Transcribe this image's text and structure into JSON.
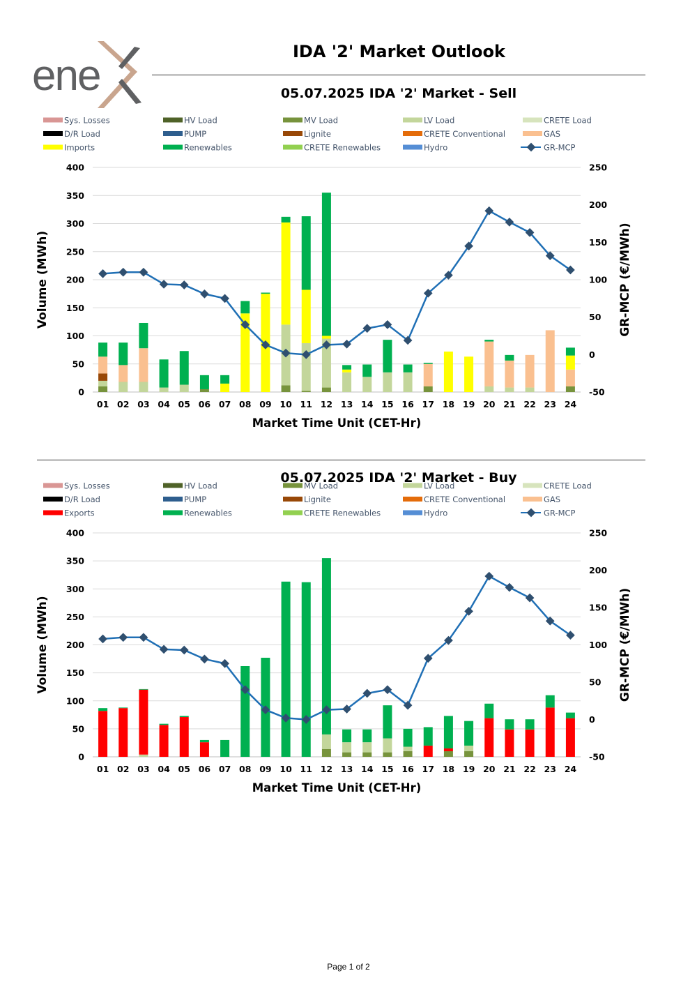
{
  "header": {
    "logo_text": "ene",
    "main_title": "IDA '2' Market Outlook",
    "page_label": "Page 1 of 2"
  },
  "colors": {
    "Sys. Losses": "#d99694",
    "HV Load": "#4f6228",
    "MV Load": "#77933c",
    "LV Load": "#c3d69b",
    "CRETE Load": "#d7e4bd",
    "D/R Load": "#000000",
    "PUMP": "#2e5e8e",
    "Lignite": "#984807",
    "CRETE Conventional": "#e46c0a",
    "GAS": "#fac090",
    "Imports": "#ffff00",
    "Exports": "#ff0000",
    "Renewables": "#00b050",
    "CRETE Renewables": "#92d050",
    "Hydro": "#558ed5",
    "GR-MCP": "#1f6fb5",
    "mcp_marker": "#2f4f6f"
  },
  "chart_data": [
    {
      "type": "bar",
      "title": "05.07.2025  IDA '2' Market - Sell",
      "xlabel": "Market Time Unit (CET-Hr)",
      "ylabel": "Volume (MWh)",
      "y2label": "GR-MCP (€/MWh)",
      "ylim": [
        0,
        400
      ],
      "yticks": [
        0,
        50,
        100,
        150,
        200,
        250,
        300,
        350,
        400
      ],
      "y2lim": [
        -50,
        250
      ],
      "y2ticks": [
        -50,
        0,
        50,
        100,
        150,
        200,
        250
      ],
      "categories": [
        "01",
        "02",
        "03",
        "04",
        "05",
        "06",
        "07",
        "08",
        "09",
        "10",
        "11",
        "12",
        "13",
        "14",
        "15",
        "16",
        "17",
        "18",
        "19",
        "20",
        "21",
        "22",
        "23",
        "24"
      ],
      "legend": [
        "Sys. Losses",
        "HV Load",
        "MV Load",
        "LV Load",
        "CRETE Load",
        "D/R Load",
        "PUMP",
        "Lignite",
        "CRETE Conventional",
        "GAS",
        "Imports",
        "Renewables",
        "CRETE Renewables",
        "Hydro",
        "GR-MCP"
      ],
      "series": [
        {
          "name": "MV Load",
          "values": [
            10,
            0,
            0,
            0,
            0,
            5,
            0,
            0,
            0,
            12,
            2,
            8,
            0,
            0,
            0,
            0,
            10,
            0,
            0,
            0,
            0,
            0,
            0,
            10
          ]
        },
        {
          "name": "LV Load",
          "values": [
            10,
            18,
            18,
            8,
            13,
            0,
            0,
            0,
            0,
            108,
            85,
            87,
            35,
            27,
            35,
            35,
            0,
            0,
            0,
            10,
            8,
            8,
            0,
            0
          ]
        },
        {
          "name": "Lignite",
          "values": [
            13,
            0,
            0,
            0,
            0,
            0,
            0,
            0,
            0,
            0,
            0,
            0,
            0,
            0,
            0,
            0,
            0,
            0,
            0,
            0,
            0,
            0,
            0,
            0
          ]
        },
        {
          "name": "GAS",
          "values": [
            30,
            30,
            60,
            0,
            0,
            0,
            0,
            0,
            0,
            0,
            0,
            0,
            0,
            0,
            0,
            0,
            40,
            0,
            0,
            80,
            48,
            58,
            110,
            30
          ]
        },
        {
          "name": "Imports",
          "values": [
            0,
            0,
            0,
            0,
            0,
            0,
            15,
            140,
            175,
            182,
            95,
            5,
            5,
            0,
            0,
            0,
            0,
            72,
            63,
            0,
            0,
            0,
            0,
            25
          ]
        },
        {
          "name": "Renewables",
          "values": [
            25,
            40,
            45,
            50,
            60,
            25,
            15,
            22,
            2,
            10,
            131,
            255,
            8,
            22,
            58,
            14,
            2,
            0,
            0,
            3,
            10,
            0,
            0,
            14
          ]
        }
      ],
      "mcp": [
        108,
        110,
        110,
        94,
        93,
        81,
        75,
        40,
        13,
        2,
        0,
        13,
        14,
        35,
        40,
        19,
        82,
        106,
        145,
        192,
        177,
        163,
        132,
        113
      ]
    },
    {
      "type": "bar",
      "title": "05.07.2025  IDA '2' Market - Buy",
      "xlabel": "Market Time Unit (CET-Hr)",
      "ylabel": "Volume (MWh)",
      "y2label": "GR-MCP (€/MWh)",
      "ylim": [
        0,
        400
      ],
      "yticks": [
        0,
        50,
        100,
        150,
        200,
        250,
        300,
        350,
        400
      ],
      "y2lim": [
        -50,
        250
      ],
      "y2ticks": [
        -50,
        0,
        50,
        100,
        150,
        200,
        250
      ],
      "categories": [
        "01",
        "02",
        "03",
        "04",
        "05",
        "06",
        "07",
        "08",
        "09",
        "10",
        "11",
        "12",
        "13",
        "14",
        "15",
        "16",
        "17",
        "18",
        "19",
        "20",
        "21",
        "22",
        "23",
        "24"
      ],
      "legend": [
        "Sys. Losses",
        "HV Load",
        "MV Load",
        "LV Load",
        "CRETE Load",
        "D/R Load",
        "PUMP",
        "Lignite",
        "CRETE Conventional",
        "GAS",
        "Exports",
        "Renewables",
        "CRETE Renewables",
        "Hydro",
        "GR-MCP"
      ],
      "series": [
        {
          "name": "MV Load",
          "values": [
            0,
            0,
            0,
            0,
            0,
            0,
            0,
            0,
            0,
            0,
            0,
            14,
            8,
            8,
            8,
            10,
            0,
            10,
            10,
            0,
            0,
            0,
            0,
            0
          ]
        },
        {
          "name": "LV Load",
          "values": [
            0,
            0,
            4,
            0,
            0,
            0,
            0,
            0,
            0,
            0,
            0,
            26,
            18,
            18,
            25,
            8,
            0,
            0,
            10,
            0,
            0,
            0,
            0,
            0
          ]
        },
        {
          "name": "Exports",
          "values": [
            82,
            87,
            116,
            57,
            71,
            26,
            0,
            0,
            0,
            0,
            0,
            0,
            0,
            0,
            0,
            0,
            20,
            5,
            0,
            69,
            49,
            49,
            88,
            69
          ]
        },
        {
          "name": "Renewables",
          "values": [
            5,
            1,
            1,
            2,
            2,
            4,
            30,
            162,
            177,
            313,
            312,
            315,
            23,
            23,
            59,
            32,
            33,
            58,
            44,
            26,
            18,
            18,
            22,
            10
          ]
        }
      ],
      "mcp": [
        108,
        110,
        110,
        94,
        93,
        81,
        75,
        40,
        13,
        2,
        0,
        13,
        14,
        35,
        40,
        19,
        82,
        106,
        145,
        192,
        177,
        163,
        132,
        113
      ]
    }
  ]
}
